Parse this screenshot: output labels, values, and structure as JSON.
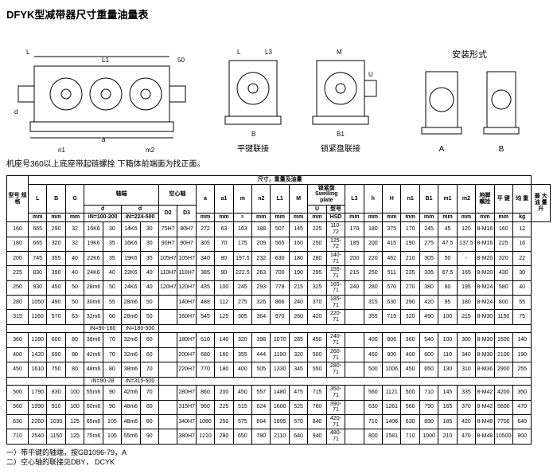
{
  "title": "DFYK型减带器尺寸重量油量表",
  "install_label": "安装形式",
  "diagram_labels": {
    "note_left": "机座号360以上底座带起链螺拴   下箱体前端面为找正面。",
    "d1": "平键联接",
    "d2": "锁紧盘联接",
    "da": "A",
    "db": "B"
  },
  "super_header": "尺寸，重量及油量",
  "headers": {
    "col1": "型号\n规格",
    "L": "L",
    "B": "B",
    "G": "G",
    "shaft": "轴端",
    "d1_col": "d",
    "d2_col": "d",
    "hollow": "空心轴",
    "D2": "D2",
    "D3": "D3",
    "a": "a",
    "a1": "a1",
    "m": "m",
    "n2": "n2",
    "L1": "L1",
    "M": "M",
    "swell": "锁紧盘\nSwelling plate",
    "U": "U",
    "model": "型号",
    "L3": "L3",
    "h": "h",
    "H": "H",
    "n1": "n1",
    "B1": "B1",
    "m1": "m1",
    "m2": "m2",
    "anchor": "地脚\n螺拴",
    "pk": "平\n键",
    "avg": "均\n重",
    "oil": "最\n大\n油\n量\n升",
    "mm": "mm",
    "kg": "kg",
    "Lunit": "L",
    "HSD": "HSD",
    "in1": "iN=100-200",
    "in2": "iN=224-500",
    "in3": "iN=90-160",
    "in4": "iN=180-500",
    "in5": "iN=90-28",
    "in6": "iN=315-500"
  },
  "rows_a": [
    [
      "160",
      "665",
      "290",
      "32",
      "16K6",
      "30",
      "14K6",
      "30",
      "75H7",
      "80H7",
      "272",
      "63",
      "163",
      "188",
      "507",
      "145",
      "225",
      "110-72",
      "170",
      "180",
      "375",
      "170",
      "245",
      "45",
      "120",
      "8-M16",
      "160",
      "12"
    ],
    [
      "180",
      "665",
      "320",
      "32",
      "19K6",
      "35",
      "16K6",
      "30",
      "90H7",
      "90H7",
      "305",
      "70",
      "175",
      "209",
      "565",
      "160",
      "250",
      "125-72",
      "185",
      "200",
      "415",
      "190",
      "275",
      "47.5",
      "137.5",
      "8-M16",
      "225",
      "16"
    ],
    [
      "200",
      "745",
      "355",
      "40",
      "22K6",
      "35",
      "19K6",
      "35",
      "105H7",
      "105H7",
      "340",
      "80",
      "197.5",
      "232",
      "630",
      "180",
      "280",
      "140-71",
      "200",
      "220",
      "462",
      "210",
      "305",
      "50",
      "-",
      "8-M20",
      "320",
      "22"
    ],
    [
      "225",
      "830",
      "390",
      "40",
      "24K6",
      "40",
      "22K6",
      "40",
      "110H7",
      "110H7",
      "385",
      "90",
      "222.5",
      "263",
      "700",
      "190",
      "295",
      "155-71",
      "215",
      "250",
      "511",
      "235",
      "335",
      "67.5",
      "165",
      "8-M20",
      "430",
      "30"
    ],
    [
      "250",
      "930",
      "450",
      "50",
      "28m6",
      "50",
      "24K6",
      "40",
      "120H7",
      "120H7",
      "435",
      "100",
      "245",
      "293",
      "778",
      "215",
      "325",
      "165-71",
      "240",
      "280",
      "570",
      "270",
      "380",
      "60",
      "195",
      "8-M24",
      "580",
      "40"
    ],
    [
      "280",
      "1050",
      "490",
      "50",
      "30m6",
      "55",
      "28m6",
      "50",
      "",
      "140H7",
      "488",
      "112",
      "275",
      "326",
      "866",
      "240",
      "370",
      "185-71",
      "",
      "315",
      "630",
      "290",
      "420",
      "95",
      "180",
      "8-M24",
      "800",
      "55"
    ],
    [
      "315",
      "1160",
      "570",
      "63",
      "32m6",
      "60",
      "28m6",
      "50",
      "",
      "160H7",
      "545",
      "125",
      "305",
      "364",
      "970",
      "260",
      "420",
      "220-71",
      "",
      "355",
      "719",
      "320",
      "490",
      "100",
      "215",
      "8-M30",
      "1150",
      "75"
    ]
  ],
  "rows_b": [
    [
      "360",
      "1280",
      "600",
      "80",
      "38m6",
      "70",
      "32m6",
      "60",
      "",
      "180H7",
      "610",
      "140",
      "320",
      "398",
      "1070",
      "285",
      "450",
      "240-71",
      "",
      "400",
      "806",
      "360",
      "540",
      "100",
      "300",
      "8-M30",
      "1500",
      "140"
    ],
    [
      "400",
      "1420",
      "690",
      "80",
      "42m6",
      "70",
      "32m6",
      "60",
      "",
      "200H7",
      "680",
      "160",
      "355",
      "444",
      "1190",
      "320",
      "500",
      "260-71",
      "",
      "460",
      "900",
      "400",
      "600",
      "110",
      "340",
      "8-M30",
      "2100",
      "190"
    ],
    [
      "450",
      "1610",
      "750",
      "80",
      "48m6",
      "80",
      "38m6",
      "70",
      "",
      "220H7",
      "770",
      "180",
      "400",
      "505",
      "1330",
      "345",
      "550",
      "280-71",
      "",
      "500",
      "1006",
      "450",
      "650",
      "130",
      "310",
      "8-M36",
      "2900",
      "255"
    ]
  ],
  "rows_c": [
    [
      "500",
      "1790",
      "830",
      "100",
      "55m6",
      "90",
      "42m6",
      "70",
      "",
      "280H7",
      "860",
      "200",
      "450",
      "557",
      "1480",
      "475",
      "715",
      "350-71",
      "",
      "560",
      "1121",
      "500",
      "710",
      "145",
      "335",
      "8-M42",
      "4200",
      "350"
    ],
    [
      "560",
      "1990",
      "910",
      "100",
      "60m6",
      "90",
      "48m6",
      "80",
      "",
      "315H7",
      "960",
      "225",
      "515",
      "624",
      "1680",
      "525",
      "760",
      "390-71",
      "",
      "630",
      "1261",
      "560",
      "790",
      "165",
      "370",
      "8-M42",
      "5600",
      "470"
    ],
    [
      "630",
      "2260",
      "1030",
      "125",
      "65m6",
      "105",
      "48m6",
      "80",
      "",
      "340H7",
      "1080",
      "250",
      "575",
      "694",
      "1895",
      "570",
      "840",
      "420-71",
      "",
      "710",
      "1406",
      "630",
      "890",
      "185",
      "420",
      "8-M48",
      "7700",
      "640"
    ],
    [
      "710",
      "2540",
      "1150",
      "125",
      "75m6",
      "105",
      "55m6",
      "90",
      "",
      "380H7",
      "1210",
      "280",
      "650",
      "780",
      "2110",
      "640",
      "940",
      "480-71",
      "",
      "800",
      "1581",
      "710",
      "1000",
      "210",
      "470",
      "8-M48",
      "10500",
      "900"
    ]
  ],
  "footer": {
    "l1": "一）带平键的轴端，按GB1096-79，A",
    "l2": "二）空心轴的联接见DBY，    DCYK"
  }
}
